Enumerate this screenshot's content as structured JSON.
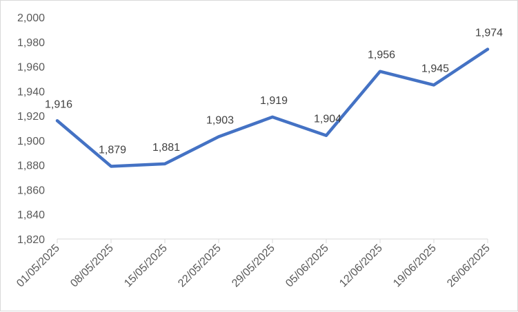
{
  "chart_data": {
    "type": "line",
    "title": "",
    "xlabel": "",
    "ylabel": "",
    "categories": [
      "01/05/2025",
      "08/05/2025",
      "15/05/2025",
      "22/05/2025",
      "29/05/2025",
      "05/06/2025",
      "12/06/2025",
      "19/06/2025",
      "26/06/2025"
    ],
    "series": [
      {
        "values": [
          1916,
          1879,
          1881,
          1903,
          1919,
          1904,
          1956,
          1945,
          1974
        ],
        "data_labels": [
          "1,916",
          "1,879",
          "1,881",
          "1,903",
          "1,919",
          "1,904",
          "1,956",
          "1,945",
          "1,974"
        ],
        "color": "#4472c4"
      }
    ],
    "ylim": [
      1820,
      2000
    ],
    "yticks": [
      "1,820",
      "1,840",
      "1,860",
      "1,880",
      "1,900",
      "1,920",
      "1,940",
      "1,960",
      "1,980",
      "2,000"
    ],
    "grid": false,
    "legend": "none",
    "axis_color": "#d9d9d9",
    "text_color": "#595959"
  }
}
